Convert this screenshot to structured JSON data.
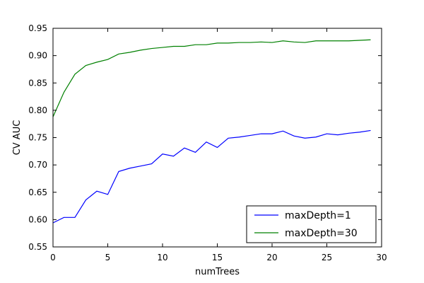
{
  "chart_data": {
    "type": "line",
    "xlabel": "numTrees",
    "ylabel": "CV AUC",
    "xlim": [
      0,
      30
    ],
    "ylim": [
      0.55,
      0.95
    ],
    "xticks": [
      0,
      5,
      10,
      15,
      20,
      25,
      30
    ],
    "xtick_labels": [
      "0",
      "5",
      "10",
      "15",
      "20",
      "25",
      "30"
    ],
    "yticks": [
      0.55,
      0.6,
      0.65,
      0.7,
      0.75,
      0.8,
      0.85,
      0.9,
      0.95
    ],
    "ytick_labels": [
      "0.55",
      "0.60",
      "0.65",
      "0.70",
      "0.75",
      "0.80",
      "0.85",
      "0.90",
      "0.95"
    ],
    "grid": false,
    "legend_position": "bottom-right",
    "series": [
      {
        "name": "maxDepth=1",
        "color": "#0000ff",
        "x": [
          0,
          1,
          2,
          3,
          4,
          5,
          6,
          7,
          8,
          9,
          10,
          11,
          12,
          13,
          14,
          15,
          16,
          17,
          18,
          19,
          20,
          21,
          22,
          23,
          24,
          25,
          26,
          27,
          28,
          29
        ],
        "values": [
          0.594,
          0.604,
          0.604,
          0.636,
          0.652,
          0.646,
          0.688,
          0.694,
          0.698,
          0.702,
          0.72,
          0.716,
          0.731,
          0.723,
          0.742,
          0.732,
          0.749,
          0.751,
          0.754,
          0.757,
          0.757,
          0.762,
          0.753,
          0.749,
          0.751,
          0.757,
          0.755,
          0.758,
          0.76,
          0.763
        ]
      },
      {
        "name": "maxDepth=30",
        "color": "#008000",
        "x": [
          0,
          1,
          2,
          3,
          4,
          5,
          6,
          7,
          8,
          9,
          10,
          11,
          12,
          13,
          14,
          15,
          16,
          17,
          18,
          19,
          20,
          21,
          22,
          23,
          24,
          25,
          26,
          27,
          28,
          29
        ],
        "values": [
          0.788,
          0.833,
          0.866,
          0.882,
          0.888,
          0.893,
          0.903,
          0.906,
          0.91,
          0.913,
          0.915,
          0.917,
          0.917,
          0.92,
          0.92,
          0.923,
          0.923,
          0.924,
          0.924,
          0.925,
          0.924,
          0.927,
          0.925,
          0.924,
          0.927,
          0.927,
          0.927,
          0.927,
          0.928,
          0.929
        ]
      }
    ]
  }
}
